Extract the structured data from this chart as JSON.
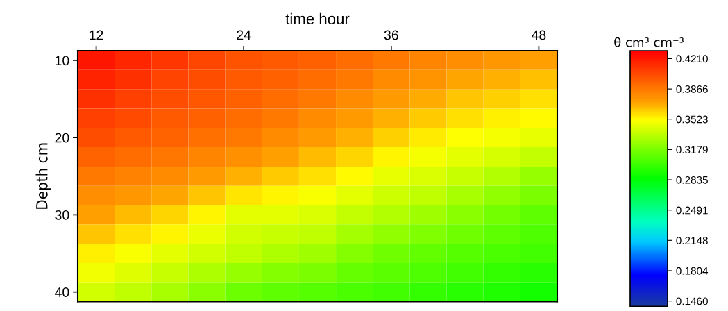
{
  "chart_data": {
    "type": "heatmap",
    "xlabel": "time hour",
    "ylabel": "Depth cm",
    "clabel": "θ cm³ cm⁻³",
    "categories": [
      "12",
      null,
      null,
      null,
      "24",
      null,
      null,
      null,
      "36",
      null,
      null,
      null,
      "48"
    ],
    "y_categories": [
      "10",
      null,
      null,
      null,
      "20",
      null,
      null,
      null,
      "30",
      null,
      null,
      null,
      "40"
    ],
    "cells": [
      [
        0.421,
        0.416,
        0.41,
        0.405,
        0.4,
        0.398,
        0.395,
        0.391,
        0.386,
        0.382,
        0.378,
        0.375,
        0.372
      ],
      [
        0.417,
        0.412,
        0.406,
        0.402,
        0.398,
        0.395,
        0.391,
        0.386,
        0.38,
        0.376,
        0.371,
        0.368,
        0.365
      ],
      [
        0.412,
        0.407,
        0.402,
        0.399,
        0.395,
        0.391,
        0.386,
        0.38,
        0.374,
        0.369,
        0.364,
        0.361,
        0.358
      ],
      [
        0.407,
        0.403,
        0.398,
        0.395,
        0.391,
        0.386,
        0.38,
        0.374,
        0.368,
        0.363,
        0.358,
        0.355,
        0.352
      ],
      [
        0.402,
        0.398,
        0.394,
        0.39,
        0.386,
        0.38,
        0.374,
        0.368,
        0.361,
        0.356,
        0.351,
        0.349,
        0.346
      ],
      [
        0.394,
        0.391,
        0.387,
        0.382,
        0.377,
        0.372,
        0.366,
        0.36,
        0.354,
        0.349,
        0.345,
        0.341,
        0.336
      ],
      [
        0.386,
        0.383,
        0.38,
        0.374,
        0.368,
        0.363,
        0.358,
        0.352,
        0.346,
        0.342,
        0.338,
        0.332,
        0.325
      ],
      [
        0.379,
        0.375,
        0.37,
        0.364,
        0.357,
        0.354,
        0.35,
        0.345,
        0.339,
        0.335,
        0.33,
        0.324,
        0.318
      ],
      [
        0.372,
        0.366,
        0.36,
        0.353,
        0.345,
        0.344,
        0.342,
        0.337,
        0.332,
        0.327,
        0.322,
        0.316,
        0.31
      ],
      [
        0.364,
        0.358,
        0.353,
        0.347,
        0.34,
        0.338,
        0.335,
        0.329,
        0.324,
        0.32,
        0.315,
        0.311,
        0.306
      ],
      [
        0.355,
        0.35,
        0.345,
        0.34,
        0.335,
        0.331,
        0.327,
        0.321,
        0.315,
        0.312,
        0.308,
        0.305,
        0.302
      ],
      [
        0.348,
        0.343,
        0.338,
        0.331,
        0.325,
        0.321,
        0.318,
        0.313,
        0.309,
        0.306,
        0.302,
        0.299,
        0.296
      ],
      [
        0.34,
        0.335,
        0.33,
        0.322,
        0.314,
        0.311,
        0.308,
        0.305,
        0.302,
        0.299,
        0.296,
        0.293,
        0.29
      ]
    ],
    "clim": [
      0.14,
      0.43
    ],
    "cticks": [
      {
        "value": 0.146,
        "label": "0.1460"
      },
      {
        "value": 0.1804,
        "label": "0.1804"
      },
      {
        "value": 0.2148,
        "label": "0.2148"
      },
      {
        "value": 0.2491,
        "label": "0.2491"
      },
      {
        "value": 0.2835,
        "label": "0.2835"
      },
      {
        "value": 0.3179,
        "label": "0.3179"
      },
      {
        "value": 0.3523,
        "label": "0.3523"
      },
      {
        "value": 0.3866,
        "label": "0.3866"
      },
      {
        "value": 0.421,
        "label": "0.4210"
      }
    ],
    "grid": false
  }
}
